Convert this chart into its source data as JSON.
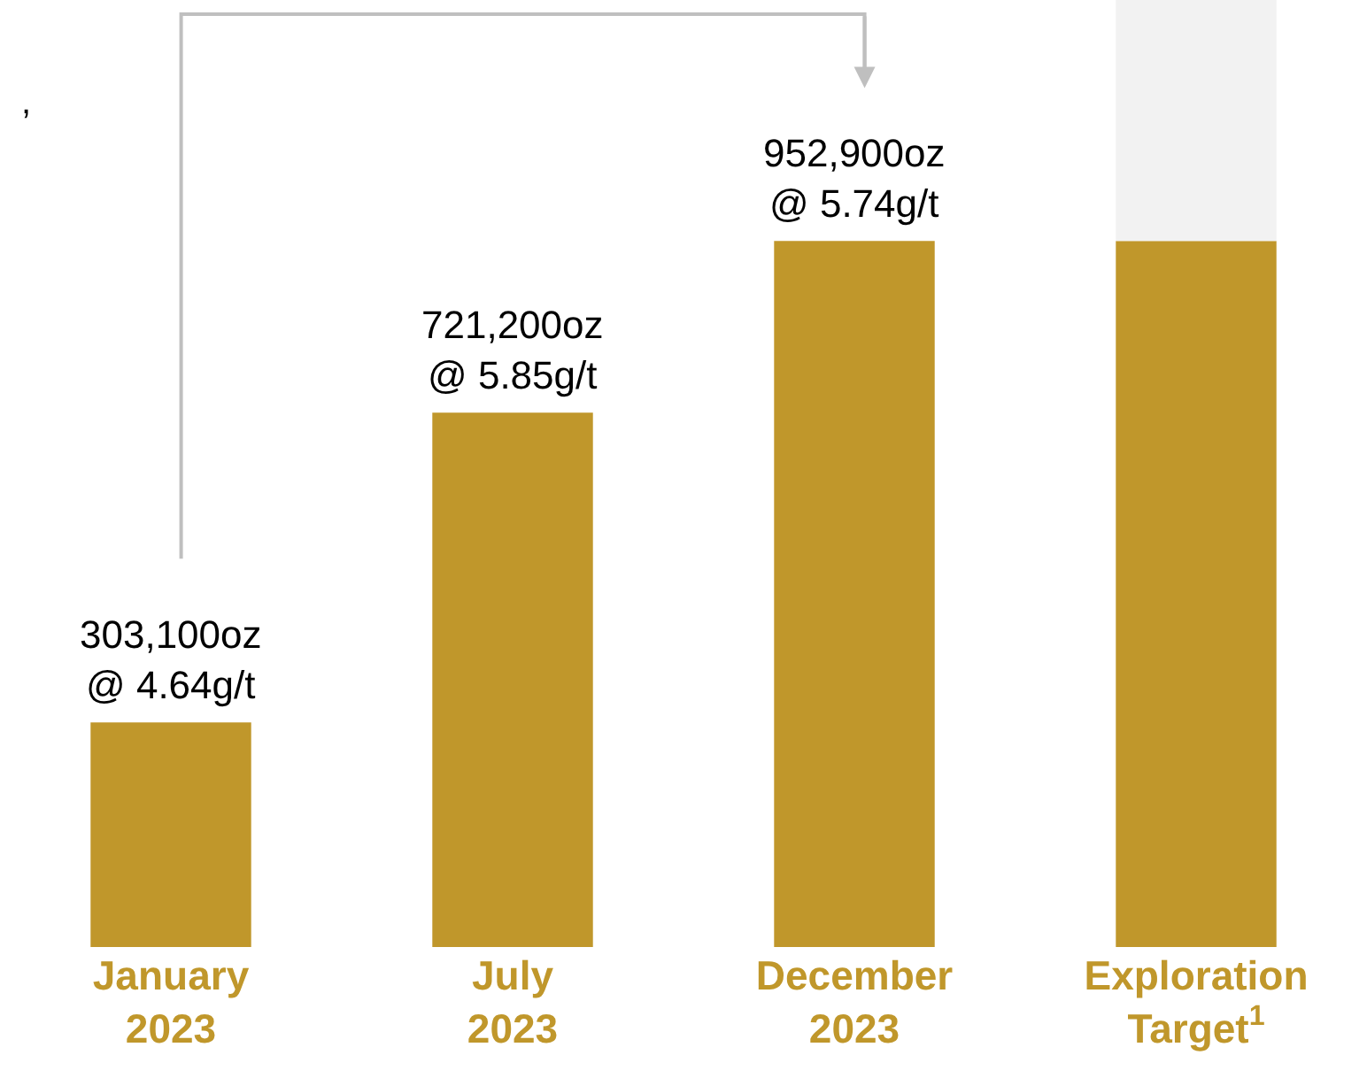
{
  "chart_data": {
    "type": "bar",
    "stacked": true,
    "categories": [
      "January\n2023",
      "July\n2023",
      "December\n2023",
      "Exploration\nTarget$^{1}$"
    ],
    "series": [
      {
        "color": "#c0972b",
        "values": [
          303100,
          721200,
          952900,
          952900
        ],
        "value_labels": [
          "303,100oz\n@ 4.64g/t",
          "721,200oz\n@ 5.85g/t",
          "952,900oz\n@ 5.74g/t",
          null
        ]
      },
      {
        "color": "#f2f2f2",
        "values": [
          0,
          0,
          0,
          325100
        ]
      }
    ],
    "ylim": [
      0,
      1278000
    ],
    "legend": false,
    "tick_labels": "x",
    "annotations": [
      ","
    ]
  }
}
